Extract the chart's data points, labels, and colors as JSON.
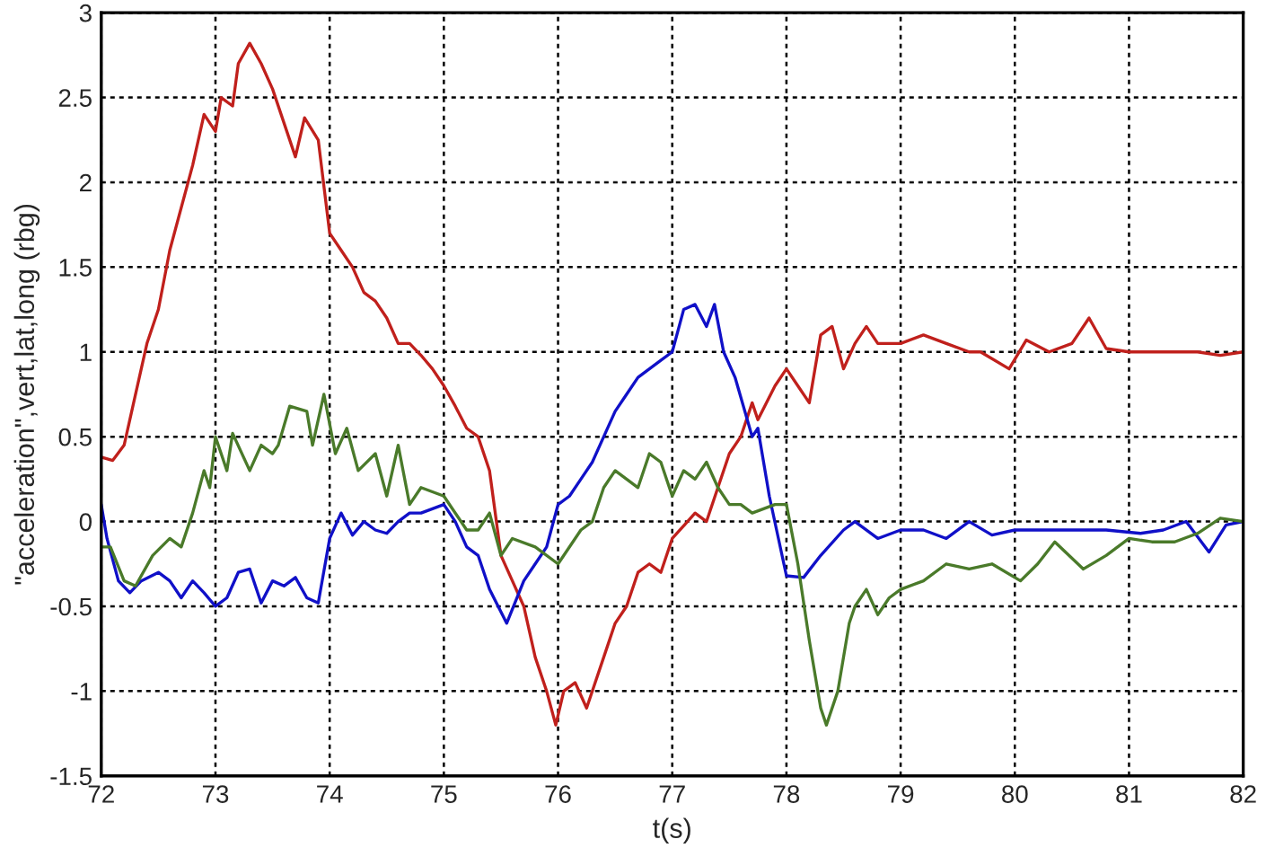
{
  "chart_data": {
    "type": "line",
    "xlabel": "t(s)",
    "ylabel": "\"acceleration\",vert,lat,long (rbg)",
    "xlim": [
      72,
      82
    ],
    "ylim": [
      -1.5,
      3
    ],
    "xticks": [
      72,
      73,
      74,
      75,
      76,
      77,
      78,
      79,
      80,
      81,
      82
    ],
    "yticks": [
      -1.5,
      -1,
      -0.5,
      0,
      0.5,
      1,
      1.5,
      2,
      2.5,
      3
    ],
    "grid": true,
    "line_style": "solid",
    "marker": "none",
    "series": [
      {
        "color": "#c0201c",
        "x": [
          72,
          72.1,
          72.2,
          72.3,
          72.4,
          72.5,
          72.6,
          72.7,
          72.8,
          72.9,
          73.0,
          73.05,
          73.15,
          73.2,
          73.3,
          73.4,
          73.5,
          73.6,
          73.7,
          73.78,
          73.9,
          74.0,
          74.1,
          74.2,
          74.3,
          74.4,
          74.5,
          74.6,
          74.7,
          74.8,
          74.9,
          75.0,
          75.1,
          75.2,
          75.3,
          75.4,
          75.5,
          75.6,
          75.7,
          75.8,
          75.9,
          75.98,
          76.05,
          76.15,
          76.25,
          76.4,
          76.5,
          76.6,
          76.7,
          76.8,
          76.9,
          77.0,
          77.2,
          77.3,
          77.4,
          77.5,
          77.6,
          77.7,
          77.75,
          77.9,
          78.0,
          78.1,
          78.2,
          78.3,
          78.4,
          78.5,
          78.6,
          78.7,
          78.8,
          79.0,
          79.2,
          79.4,
          79.6,
          79.7,
          79.95,
          80.1,
          80.3,
          80.5,
          80.65,
          80.8,
          81.0,
          81.2,
          81.4,
          81.6,
          81.8,
          82
        ],
        "values": [
          0.38,
          0.36,
          0.45,
          0.75,
          1.05,
          1.25,
          1.6,
          1.85,
          2.1,
          2.4,
          2.3,
          2.5,
          2.45,
          2.7,
          2.82,
          2.7,
          2.55,
          2.35,
          2.15,
          2.38,
          2.25,
          1.7,
          1.6,
          1.5,
          1.35,
          1.3,
          1.2,
          1.05,
          1.05,
          0.98,
          0.9,
          0.8,
          0.68,
          0.55,
          0.5,
          0.3,
          -0.2,
          -0.35,
          -0.5,
          -0.8,
          -1.0,
          -1.2,
          -1.0,
          -0.95,
          -1.1,
          -0.8,
          -0.6,
          -0.5,
          -0.3,
          -0.25,
          -0.3,
          -0.1,
          0.05,
          0.0,
          0.2,
          0.4,
          0.5,
          0.7,
          0.6,
          0.8,
          0.9,
          0.8,
          0.7,
          1.1,
          1.15,
          0.9,
          1.05,
          1.15,
          1.05,
          1.05,
          1.1,
          1.05,
          1.0,
          1.0,
          0.9,
          1.07,
          1.0,
          1.05,
          1.2,
          1.02,
          1.0,
          1.0,
          1.0,
          1.0,
          0.98,
          1.0
        ]
      },
      {
        "color": "#1010c8",
        "x": [
          72,
          72.05,
          72.15,
          72.25,
          72.35,
          72.5,
          72.6,
          72.7,
          72.8,
          72.9,
          73.0,
          73.1,
          73.2,
          73.3,
          73.4,
          73.5,
          73.6,
          73.7,
          73.8,
          73.9,
          74.0,
          74.1,
          74.2,
          74.3,
          74.4,
          74.5,
          74.6,
          74.7,
          74.8,
          75.0,
          75.1,
          75.2,
          75.3,
          75.4,
          75.55,
          75.7,
          75.8,
          75.9,
          76.0,
          76.1,
          76.2,
          76.3,
          76.4,
          76.5,
          76.6,
          76.7,
          76.8,
          76.9,
          77.0,
          77.1,
          77.2,
          77.3,
          77.37,
          77.45,
          77.55,
          77.7,
          77.75,
          77.85,
          78.0,
          78.15,
          78.3,
          78.5,
          78.6,
          78.8,
          79.0,
          79.2,
          79.4,
          79.6,
          79.8,
          80.0,
          80.2,
          80.5,
          80.8,
          81.1,
          81.3,
          81.5,
          81.7,
          81.85,
          82
        ],
        "values": [
          0.1,
          -0.1,
          -0.35,
          -0.42,
          -0.35,
          -0.3,
          -0.35,
          -0.45,
          -0.35,
          -0.42,
          -0.5,
          -0.45,
          -0.3,
          -0.28,
          -0.48,
          -0.35,
          -0.38,
          -0.33,
          -0.45,
          -0.48,
          -0.1,
          0.05,
          -0.08,
          0.0,
          -0.05,
          -0.07,
          0.0,
          0.05,
          0.05,
          0.1,
          0.0,
          -0.15,
          -0.2,
          -0.4,
          -0.6,
          -0.35,
          -0.25,
          -0.15,
          0.1,
          0.15,
          0.25,
          0.35,
          0.5,
          0.65,
          0.75,
          0.85,
          0.9,
          0.95,
          1.0,
          1.25,
          1.28,
          1.15,
          1.28,
          1.0,
          0.85,
          0.5,
          0.55,
          0.15,
          -0.32,
          -0.33,
          -0.2,
          -0.05,
          0.0,
          -0.1,
          -0.05,
          -0.05,
          -0.1,
          0.0,
          -0.08,
          -0.05,
          -0.05,
          -0.05,
          -0.05,
          -0.07,
          -0.05,
          0.0,
          -0.18,
          -0.02,
          0.0
        ]
      },
      {
        "color": "#4a7a2a",
        "x": [
          72,
          72.08,
          72.2,
          72.3,
          72.45,
          72.6,
          72.7,
          72.8,
          72.9,
          72.95,
          73.0,
          73.1,
          73.15,
          73.3,
          73.4,
          73.5,
          73.55,
          73.65,
          73.8,
          73.85,
          73.95,
          74.05,
          74.15,
          74.25,
          74.4,
          74.5,
          74.6,
          74.7,
          74.8,
          75.0,
          75.2,
          75.3,
          75.4,
          75.5,
          75.6,
          75.8,
          76.0,
          76.2,
          76.3,
          76.4,
          76.5,
          76.6,
          76.7,
          76.8,
          76.9,
          77.0,
          77.1,
          77.2,
          77.3,
          77.4,
          77.5,
          77.6,
          77.7,
          77.9,
          78.0,
          78.1,
          78.2,
          78.3,
          78.35,
          78.45,
          78.55,
          78.6,
          78.7,
          78.8,
          78.9,
          79.0,
          79.2,
          79.4,
          79.6,
          79.8,
          80.05,
          80.2,
          80.35,
          80.6,
          80.8,
          81.0,
          81.2,
          81.4,
          81.6,
          81.8,
          82
        ],
        "values": [
          -0.15,
          -0.15,
          -0.35,
          -0.38,
          -0.2,
          -0.1,
          -0.15,
          0.05,
          0.3,
          0.2,
          0.5,
          0.3,
          0.52,
          0.3,
          0.45,
          0.4,
          0.45,
          0.68,
          0.65,
          0.45,
          0.75,
          0.4,
          0.55,
          0.3,
          0.4,
          0.15,
          0.45,
          0.1,
          0.2,
          0.15,
          -0.05,
          -0.05,
          0.05,
          -0.2,
          -0.1,
          -0.15,
          -0.25,
          -0.05,
          0.0,
          0.2,
          0.3,
          0.25,
          0.2,
          0.4,
          0.35,
          0.15,
          0.3,
          0.25,
          0.35,
          0.2,
          0.1,
          0.1,
          0.05,
          0.1,
          0.1,
          -0.25,
          -0.7,
          -1.1,
          -1.2,
          -1.0,
          -0.6,
          -0.5,
          -0.4,
          -0.55,
          -0.45,
          -0.4,
          -0.35,
          -0.25,
          -0.28,
          -0.25,
          -0.35,
          -0.25,
          -0.12,
          -0.28,
          -0.2,
          -0.1,
          -0.12,
          -0.12,
          -0.07,
          0.02,
          0.0
        ]
      }
    ]
  }
}
